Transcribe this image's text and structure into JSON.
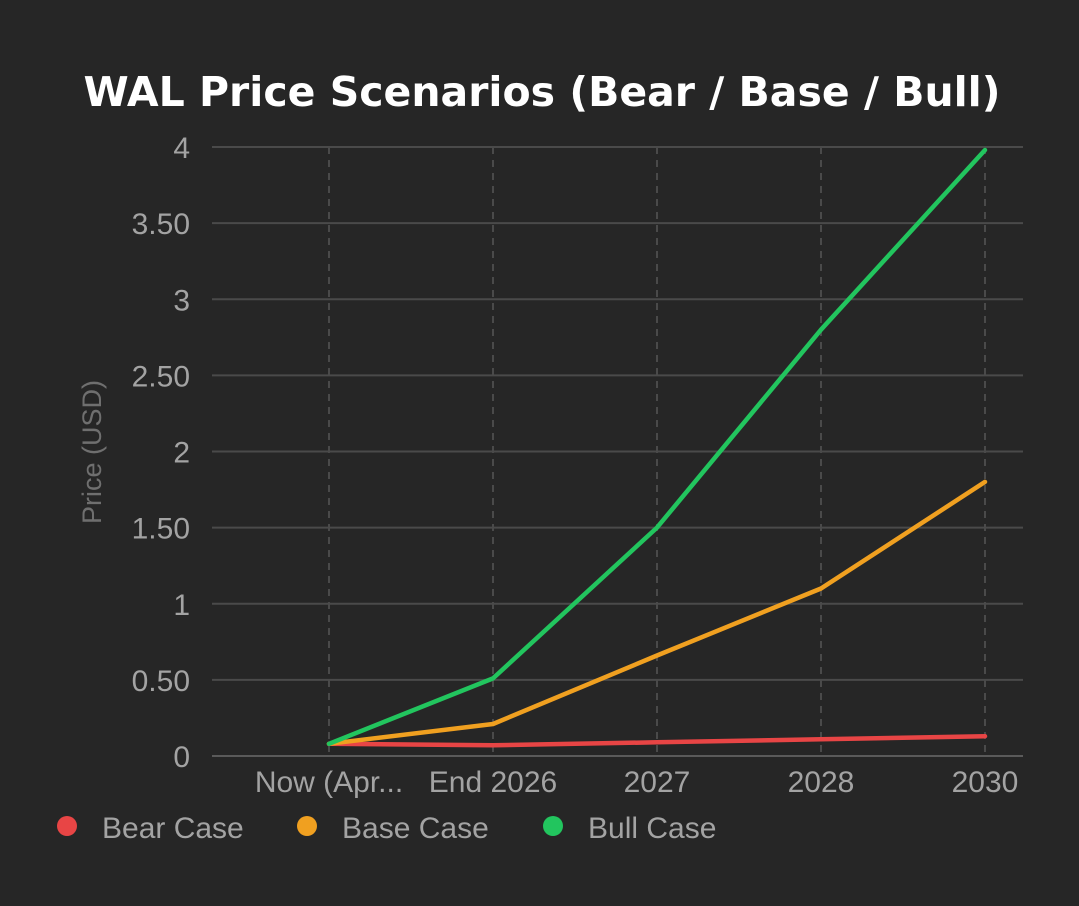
{
  "chart_data": {
    "type": "line",
    "title": "WAL Price Scenarios (Bear / Base / Bull)",
    "xlabel": "",
    "ylabel": "Price (USD)",
    "categories": [
      "Now (Apr...",
      "End 2026",
      "2027",
      "2028",
      "2030"
    ],
    "ylim": [
      0,
      4
    ],
    "yticks": [
      0,
      0.5,
      1,
      1.5,
      2,
      2.5,
      3,
      3.5,
      4
    ],
    "ytick_labels": [
      "0",
      "0.50",
      "1",
      "1.50",
      "2",
      "2.50",
      "3",
      "3.50",
      "4"
    ],
    "grid": true,
    "legend_position": "bottom-left",
    "series": [
      {
        "name": "Bear Case",
        "color": "#e84545",
        "values": [
          0.08,
          0.07,
          0.09,
          0.11,
          0.13
        ]
      },
      {
        "name": "Base Case",
        "color": "#f0a020",
        "values": [
          0.08,
          0.21,
          0.66,
          1.1,
          1.8
        ]
      },
      {
        "name": "Bull Case",
        "color": "#22c55e",
        "values": [
          0.08,
          0.51,
          1.5,
          2.8,
          3.98
        ]
      }
    ]
  }
}
